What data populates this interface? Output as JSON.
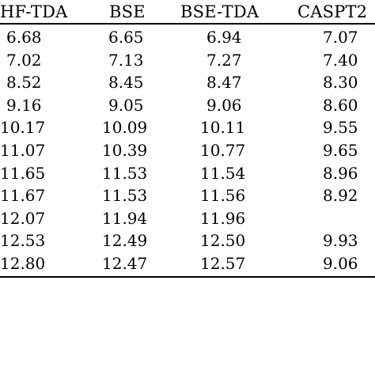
{
  "table": {
    "headers": [
      "HF-TDA",
      "BSE",
      "BSE-TDA",
      "CASPT2"
    ],
    "rows": [
      [
        "6.68",
        "6.65",
        "6.94",
        "7.07"
      ],
      [
        "7.02",
        "7.13",
        "7.27",
        "7.40"
      ],
      [
        "8.52",
        "8.45",
        "8.47",
        "8.30"
      ],
      [
        "9.16",
        "9.05",
        "9.06",
        "8.60"
      ],
      [
        "10.17",
        "10.09",
        "10.11",
        "9.55"
      ],
      [
        "11.07",
        "10.39",
        "10.77",
        "9.65"
      ],
      [
        "11.65",
        "11.53",
        "11.54",
        "8.96"
      ],
      [
        "11.67",
        "11.53",
        "11.56",
        "8.92"
      ],
      [
        "12.07",
        "11.94",
        "11.96",
        ""
      ],
      [
        "12.53",
        "12.49",
        "12.50",
        "9.93"
      ],
      [
        "12.80",
        "12.47",
        "12.57",
        "9.06"
      ]
    ]
  }
}
